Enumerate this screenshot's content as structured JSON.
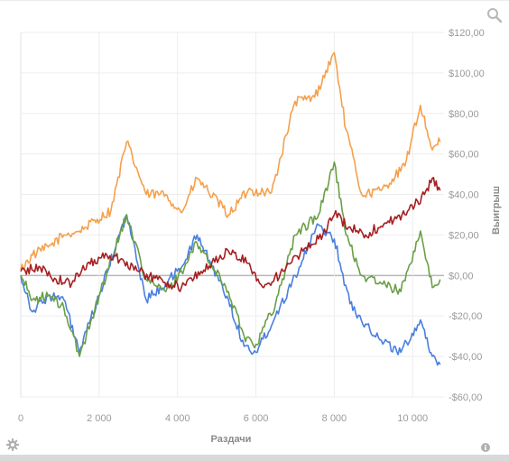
{
  "chart_data": {
    "type": "line",
    "xlabel": "Раздачи",
    "ylabel": "Выигрыш",
    "xlim": [
      0,
      10800
    ],
    "ylim": [
      -60,
      120
    ],
    "x_ticks": [
      0,
      2000,
      4000,
      6000,
      8000,
      10000
    ],
    "x_tick_labels": [
      "0",
      "2 000",
      "4 000",
      "6 000",
      "8 000",
      "10 000"
    ],
    "y_ticks": [
      120,
      100,
      80,
      60,
      40,
      20,
      0,
      -20,
      -40,
      -60
    ],
    "y_tick_labels": [
      "$120,00",
      "$100,00",
      "$80,00",
      "$60,00",
      "$40,00",
      "$20,00",
      "$0,00",
      "-$20,00",
      "-$40,00",
      "-$60,00"
    ],
    "grid": true,
    "series": [
      {
        "color": "#f5a04b",
        "x": [
          0,
          300,
          700,
          1100,
          1500,
          2300,
          2700,
          3200,
          3700,
          4100,
          4500,
          5300,
          5800,
          6400,
          7000,
          7500,
          8000,
          8300,
          8700,
          9200,
          9800,
          10200,
          10500,
          10700
        ],
        "y": [
          3,
          10,
          14,
          20,
          22,
          32,
          66,
          40,
          40,
          31,
          48,
          30,
          42,
          41,
          86,
          88,
          110,
          72,
          40,
          42,
          54,
          84,
          62,
          66
        ]
      },
      {
        "color": "#4a7fe0",
        "x": [
          0,
          300,
          700,
          1100,
          1500,
          2000,
          2700,
          3200,
          3700,
          4100,
          4500,
          5300,
          5700,
          6000,
          6500,
          7000,
          7600,
          8000,
          8400,
          8800,
          9200,
          9700,
          10200,
          10500,
          10700
        ],
        "y": [
          0,
          -18,
          -10,
          -12,
          -38,
          -10,
          30,
          -12,
          -4,
          4,
          20,
          -12,
          -35,
          -38,
          -20,
          0,
          25,
          18,
          -14,
          -24,
          -32,
          -38,
          -22,
          -40,
          -44
        ]
      },
      {
        "color": "#6a9f45",
        "x": [
          0,
          300,
          700,
          1100,
          1500,
          2000,
          2700,
          3200,
          3700,
          4100,
          4500,
          5300,
          5700,
          6000,
          6500,
          7000,
          7600,
          8000,
          8300,
          8700,
          9200,
          9700,
          10200,
          10500,
          10700
        ],
        "y": [
          0,
          -12,
          -10,
          -16,
          -40,
          -10,
          30,
          -2,
          -8,
          2,
          16,
          -8,
          -30,
          -34,
          -14,
          20,
          30,
          56,
          20,
          0,
          -4,
          -8,
          22,
          -6,
          -2
        ]
      },
      {
        "color": "#a61f22",
        "x": [
          0,
          500,
          900,
          1300,
          1700,
          2200,
          2600,
          3000,
          3500,
          4100,
          4600,
          5300,
          5800,
          6200,
          6700,
          7200,
          7600,
          8000,
          8400,
          8800,
          9300,
          9800,
          10300,
          10500,
          10700
        ],
        "y": [
          2,
          4,
          -2,
          -4,
          6,
          10,
          8,
          2,
          -2,
          -6,
          2,
          12,
          6,
          -6,
          2,
          12,
          18,
          30,
          24,
          20,
          26,
          30,
          40,
          48,
          42
        ]
      }
    ]
  },
  "icons": {
    "zoom": "magnifier-icon",
    "settings": "gear-icon",
    "info": "info-icon"
  }
}
